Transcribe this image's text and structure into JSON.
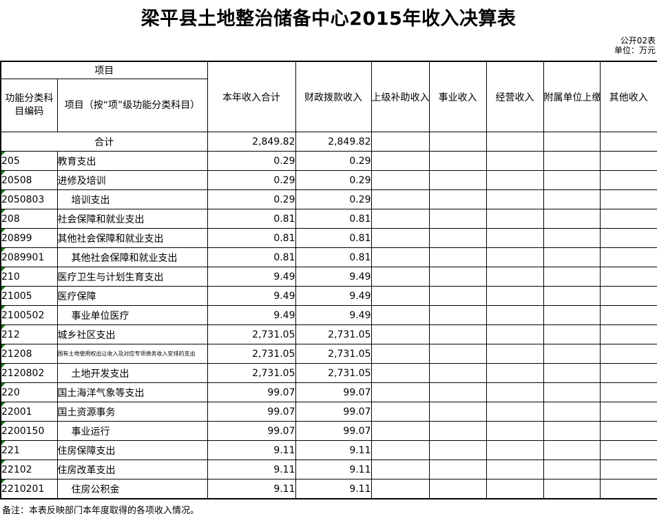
{
  "title": "梁平县土地整治储备中心2015年收入决算表",
  "meta": {
    "sheet_label": "公开02表",
    "unit_label": "单位：万元"
  },
  "colors": {
    "error_triangle": "#1a7a1a",
    "border": "#000000",
    "background": "#ffffff"
  },
  "table": {
    "header": {
      "group_project": "项目",
      "col_code": "功能分类科目编码",
      "col_item": "项目（按“项”级功能分类科目）",
      "col_total": "本年收入合计",
      "col_fiscal": "财政拨款收入",
      "col_subsidy": "上级补助收入",
      "col_business": "事业收入",
      "col_operating": "经营收入",
      "col_affiliate": "附属单位上缴收入",
      "col_other": "其他收入"
    },
    "empty_cols": [
      "subsidy",
      "business",
      "operating",
      "affiliate",
      "other"
    ],
    "total_row": {
      "label": "合计",
      "total": "2,849.82",
      "fiscal": "2,849.82"
    },
    "rows": [
      {
        "code": "205",
        "name": "教育支出",
        "total": "0.29",
        "fiscal": "0.29",
        "indent": false,
        "small": false,
        "triangle": true
      },
      {
        "code": "20508",
        "name": "进修及培训",
        "total": "0.29",
        "fiscal": "0.29",
        "indent": false,
        "small": false,
        "triangle": true
      },
      {
        "code": "2050803",
        "name": "培训支出",
        "total": "0.29",
        "fiscal": "0.29",
        "indent": true,
        "small": false,
        "triangle": true
      },
      {
        "code": "208",
        "name": "社会保障和就业支出",
        "total": "0.81",
        "fiscal": "0.81",
        "indent": false,
        "small": false,
        "triangle": true
      },
      {
        "code": "20899",
        "name": "其他社会保障和就业支出",
        "total": "0.81",
        "fiscal": "0.81",
        "indent": false,
        "small": false,
        "triangle": true
      },
      {
        "code": "2089901",
        "name": "其他社会保障和就业支出",
        "total": "0.81",
        "fiscal": "0.81",
        "indent": true,
        "small": false,
        "triangle": true
      },
      {
        "code": "210",
        "name": "医疗卫生与计划生育支出",
        "total": "9.49",
        "fiscal": "9.49",
        "indent": false,
        "small": false,
        "triangle": true
      },
      {
        "code": "21005",
        "name": "医疗保障",
        "total": "9.49",
        "fiscal": "9.49",
        "indent": false,
        "small": false,
        "triangle": true
      },
      {
        "code": "2100502",
        "name": "事业单位医疗",
        "total": "9.49",
        "fiscal": "9.49",
        "indent": true,
        "small": false,
        "triangle": true
      },
      {
        "code": "212",
        "name": "城乡社区支出",
        "total": "2,731.05",
        "fiscal": "2,731.05",
        "indent": false,
        "small": false,
        "triangle": true
      },
      {
        "code": "21208",
        "name": "国有土地使用权出让收入及对应专项债务收入安排的支出",
        "total": "2,731.05",
        "fiscal": "2,731.05",
        "indent": false,
        "small": true,
        "triangle": true
      },
      {
        "code": "2120802",
        "name": "土地开发支出",
        "total": "2,731.05",
        "fiscal": "2,731.05",
        "indent": true,
        "small": false,
        "triangle": true
      },
      {
        "code": "220",
        "name": "国土海洋气象等支出",
        "total": "99.07",
        "fiscal": "99.07",
        "indent": false,
        "small": false,
        "triangle": true
      },
      {
        "code": "22001",
        "name": "国土资源事务",
        "total": "99.07",
        "fiscal": "99.07",
        "indent": false,
        "small": false,
        "triangle": true
      },
      {
        "code": "2200150",
        "name": "事业运行",
        "total": "99.07",
        "fiscal": "99.07",
        "indent": true,
        "small": false,
        "triangle": true
      },
      {
        "code": "221",
        "name": "住房保障支出",
        "total": "9.11",
        "fiscal": "9.11",
        "indent": false,
        "small": false,
        "triangle": true
      },
      {
        "code": "22102",
        "name": "住房改革支出",
        "total": "9.11",
        "fiscal": "9.11",
        "indent": false,
        "small": false,
        "triangle": true
      },
      {
        "code": "2210201",
        "name": "住房公积金",
        "total": "9.11",
        "fiscal": "9.11",
        "indent": true,
        "small": false,
        "triangle": true
      }
    ]
  },
  "footnote": "备注：本表反映部门本年度取得的各项收入情况。"
}
